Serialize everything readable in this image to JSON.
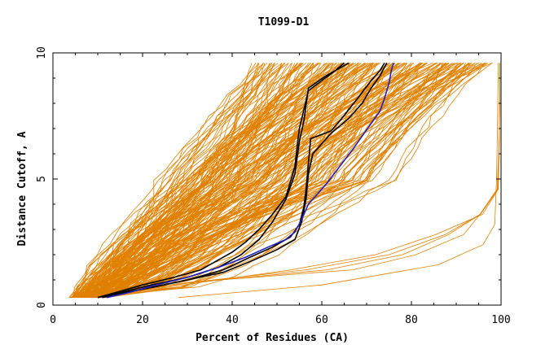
{
  "chart_data": {
    "type": "line",
    "title": "T1099-D1",
    "xlabel": "Percent of Residues (CA)",
    "ylabel": "Distance Cutoff, A",
    "xlim": [
      0,
      100
    ],
    "ylim": [
      0,
      10
    ],
    "x_ticks": [
      {
        "value": 0,
        "label": "0"
      },
      {
        "value": 20,
        "label": "20"
      },
      {
        "value": 40,
        "label": "40"
      },
      {
        "value": 60,
        "label": "60"
      },
      {
        "value": 80,
        "label": "80"
      },
      {
        "value": 100,
        "label": "100"
      }
    ],
    "y_ticks": [
      {
        "value": 0,
        "label": "0"
      },
      {
        "value": 5,
        "label": "5"
      },
      {
        "value": 10,
        "label": "10"
      }
    ],
    "grid": false,
    "colors": {
      "models": "#e08000",
      "highlight_black": "#000000",
      "highlight_blue": "#2020c0",
      "axes": "#000000"
    },
    "bundle_models": 200,
    "tail_models": 4,
    "series": [
      {
        "color": "black",
        "points": [
          [
            10,
            0.3
          ],
          [
            15,
            0.5
          ],
          [
            22,
            0.8
          ],
          [
            30,
            1.1
          ],
          [
            37,
            1.5
          ],
          [
            42,
            2.0
          ],
          [
            46,
            2.6
          ],
          [
            49,
            3.3
          ],
          [
            52,
            4.2
          ],
          [
            54,
            5.2
          ],
          [
            55,
            6.5
          ],
          [
            56,
            7.3
          ],
          [
            57,
            8.6
          ],
          [
            61,
            9.1
          ],
          [
            66,
            9.6
          ]
        ]
      },
      {
        "color": "black",
        "points": [
          [
            11,
            0.3
          ],
          [
            16,
            0.5
          ],
          [
            22,
            0.7
          ],
          [
            30,
            1.0
          ],
          [
            38,
            1.4
          ],
          [
            44,
            1.9
          ],
          [
            49,
            2.3
          ],
          [
            53,
            2.7
          ],
          [
            55,
            3.2
          ],
          [
            56,
            3.9
          ],
          [
            56.5,
            4.6
          ],
          [
            57,
            5.6
          ],
          [
            57.5,
            6.6
          ],
          [
            62,
            6.9
          ],
          [
            64,
            7.3
          ],
          [
            68,
            8.2
          ],
          [
            71,
            8.9
          ],
          [
            73,
            9.3
          ],
          [
            74,
            9.6
          ]
        ]
      },
      {
        "color": "black",
        "points": [
          [
            11,
            0.3
          ],
          [
            16,
            0.5
          ],
          [
            22,
            0.7
          ],
          [
            30,
            1.0
          ],
          [
            38,
            1.3
          ],
          [
            45,
            1.8
          ],
          [
            50,
            2.2
          ],
          [
            54,
            2.6
          ],
          [
            55.5,
            3.3
          ],
          [
            56.5,
            4.2
          ],
          [
            57,
            5.2
          ],
          [
            58,
            6.0
          ],
          [
            62,
            6.8
          ],
          [
            66,
            7.4
          ],
          [
            69,
            8.0
          ],
          [
            71,
            8.6
          ],
          [
            73,
            9.1
          ],
          [
            74.5,
            9.6
          ]
        ]
      },
      {
        "color": "black",
        "points": [
          [
            10,
            0.3
          ],
          [
            14,
            0.5
          ],
          [
            20,
            0.8
          ],
          [
            27,
            1.1
          ],
          [
            33,
            1.4
          ],
          [
            37,
            1.8
          ],
          [
            40,
            2.1
          ],
          [
            43,
            2.5
          ],
          [
            46,
            3.0
          ],
          [
            49,
            3.6
          ],
          [
            52,
            4.3
          ],
          [
            54,
            5.5
          ],
          [
            54.5,
            6.3
          ],
          [
            55,
            7.0
          ],
          [
            57,
            8.5
          ],
          [
            60,
            8.9
          ],
          [
            63,
            9.3
          ],
          [
            65,
            9.6
          ]
        ]
      },
      {
        "color": "blue",
        "points": [
          [
            12,
            0.3
          ],
          [
            17,
            0.5
          ],
          [
            23,
            0.8
          ],
          [
            30,
            1.1
          ],
          [
            37,
            1.5
          ],
          [
            43,
            1.9
          ],
          [
            48,
            2.3
          ],
          [
            52,
            2.6
          ],
          [
            54,
            2.9
          ],
          [
            55.5,
            3.4
          ],
          [
            57,
            4.0
          ],
          [
            59,
            4.4
          ],
          [
            61,
            4.8
          ],
          [
            64,
            5.5
          ],
          [
            67,
            6.2
          ],
          [
            69,
            6.7
          ],
          [
            71,
            7.2
          ],
          [
            73,
            7.7
          ],
          [
            74,
            8.2
          ],
          [
            75,
            8.8
          ],
          [
            75.5,
            9.3
          ],
          [
            76,
            9.6
          ]
        ]
      }
    ]
  }
}
